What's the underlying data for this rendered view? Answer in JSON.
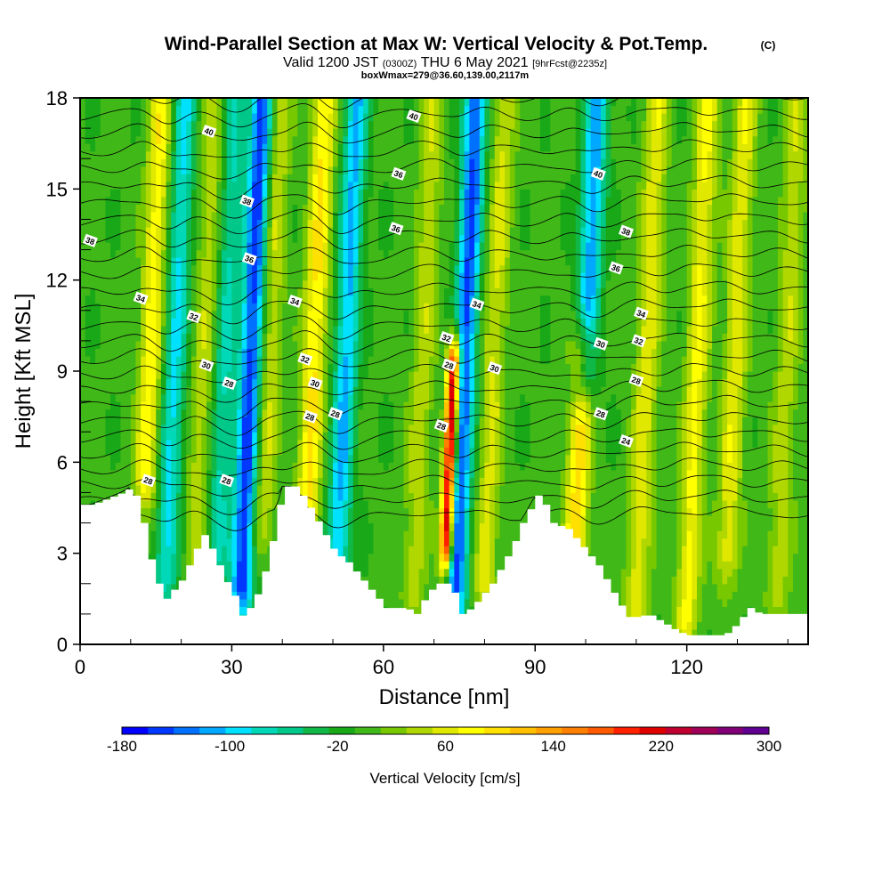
{
  "header": {
    "title": "Wind-Parallel Section at Max W: Vertical Velocity & Pot.Temp.",
    "copyright": "(C)",
    "valid_prefix": "Valid 1200 JST",
    "valid_utc": "(0300Z)",
    "valid_date": "THU 6 May 2021",
    "forecast": "[9hrFcst@2235z]",
    "box_info": "boxWmax=279@36.60,139.00,2117m"
  },
  "chart_data": {
    "type": "heatmap",
    "title": "Wind-Parallel Section at Max W: Vertical Velocity & Pot.Temp.",
    "xlabel": "Distance [nm]",
    "ylabel": "Height [Kft MSL]",
    "xlim": [
      0,
      144
    ],
    "ylim": [
      0,
      18
    ],
    "x_ticks": [
      "0",
      "30",
      "60",
      "90",
      "120"
    ],
    "x_tick_values": [
      0,
      30,
      60,
      90,
      120
    ],
    "y_ticks": [
      "0",
      "3",
      "6",
      "9",
      "12",
      "15",
      "18"
    ],
    "y_tick_values": [
      0,
      3,
      6,
      9,
      12,
      15,
      18
    ],
    "colorbar": {
      "label": "Vertical Velocity [cm/s]",
      "min": -180,
      "max": 300,
      "step": 20,
      "tick_labels": [
        "-180",
        "-100",
        "-20",
        "60",
        "140",
        "220",
        "300"
      ],
      "tick_values": [
        -180,
        -100,
        -20,
        60,
        140,
        220,
        300
      ],
      "colors": [
        "#0000ff",
        "#0038ff",
        "#0070ff",
        "#00a8ff",
        "#00e0ff",
        "#00d8b8",
        "#00c888",
        "#10b848",
        "#18a818",
        "#40b818",
        "#78c800",
        "#b0d800",
        "#e0e800",
        "#ffff00",
        "#ffe000",
        "#ffc000",
        "#ffa000",
        "#ff8000",
        "#ff5a00",
        "#ff2000",
        "#e00000",
        "#c00030",
        "#a00058",
        "#800078",
        "#600090"
      ]
    },
    "vertical_velocity_features": [
      {
        "x": 13,
        "y_range": [
          5.5,
          18
        ],
        "w": 90,
        "kind": "updraft"
      },
      {
        "x": 17,
        "y_range": [
          2.5,
          18
        ],
        "w": -90,
        "kind": "downdraft"
      },
      {
        "x": 23,
        "y_range": [
          3,
          18
        ],
        "w": 50,
        "kind": "updraft"
      },
      {
        "x": 27,
        "y_range": [
          3,
          18
        ],
        "w": -70,
        "kind": "downdraft"
      },
      {
        "x": 32,
        "y_range": [
          2,
          18
        ],
        "w": -160,
        "kind": "downdraft"
      },
      {
        "x": 36,
        "y_range": [
          4,
          18
        ],
        "w": 60,
        "kind": "updraft"
      },
      {
        "x": 45,
        "y_range": [
          4.5,
          18
        ],
        "w": 100,
        "kind": "updraft"
      },
      {
        "x": 51,
        "y_range": [
          3,
          18
        ],
        "w": -110,
        "kind": "downdraft"
      },
      {
        "x": 66,
        "y_range": [
          2,
          18
        ],
        "w": 50,
        "kind": "updraft"
      },
      {
        "x": 74,
        "y_range": [
          1,
          18
        ],
        "w": -150,
        "kind": "downdraft"
      },
      {
        "x": 72.5,
        "y_range": [
          3.5,
          9
        ],
        "w": 279,
        "kind": "updraft"
      },
      {
        "x": 80,
        "y_range": [
          2,
          18
        ],
        "w": 60,
        "kind": "updraft"
      },
      {
        "x": 98,
        "y_range": [
          3.5,
          9.5
        ],
        "w": 110,
        "kind": "updraft"
      },
      {
        "x": 100,
        "y_range": [
          9,
          18
        ],
        "w": -120,
        "kind": "downdraft"
      },
      {
        "x": 110,
        "y_range": [
          1,
          18
        ],
        "w": 70,
        "kind": "updraft"
      },
      {
        "x": 120,
        "y_range": [
          1,
          18
        ],
        "w": 80,
        "kind": "updraft"
      },
      {
        "x": 128,
        "y_range": [
          3,
          18
        ],
        "w": 70,
        "kind": "updraft"
      },
      {
        "x": 138,
        "y_range": [
          2,
          18
        ],
        "w": 50,
        "kind": "updraft"
      }
    ],
    "terrain_kft": [
      [
        0,
        4.6
      ],
      [
        2,
        4.6
      ],
      [
        5,
        4.8
      ],
      [
        8,
        5.0
      ],
      [
        10,
        5.2
      ],
      [
        12,
        4.0
      ],
      [
        13,
        3.2
      ],
      [
        14,
        2.4
      ],
      [
        15,
        2.0
      ],
      [
        16,
        1.4
      ],
      [
        17,
        1.6
      ],
      [
        18,
        1.8
      ],
      [
        20,
        2.2
      ],
      [
        22,
        3.0
      ],
      [
        24,
        3.6
      ],
      [
        26,
        3.0
      ],
      [
        28,
        2.2
      ],
      [
        30,
        1.6
      ],
      [
        31,
        1.0
      ],
      [
        32,
        0.9
      ],
      [
        33,
        1.2
      ],
      [
        35,
        1.8
      ],
      [
        37,
        3.0
      ],
      [
        39,
        4.6
      ],
      [
        40,
        5.2
      ],
      [
        42,
        5.2
      ],
      [
        44,
        4.8
      ],
      [
        46,
        4.2
      ],
      [
        48,
        3.6
      ],
      [
        50,
        3.0
      ],
      [
        52,
        2.8
      ],
      [
        54,
        2.4
      ],
      [
        56,
        2.0
      ],
      [
        58,
        1.6
      ],
      [
        60,
        1.2
      ],
      [
        62,
        1.2
      ],
      [
        64,
        1.2
      ],
      [
        66,
        1.0
      ],
      [
        68,
        1.6
      ],
      [
        70,
        2.0
      ],
      [
        72,
        2.0
      ],
      [
        74,
        1.6
      ],
      [
        75,
        1.0
      ],
      [
        77,
        1.2
      ],
      [
        79,
        1.6
      ],
      [
        81,
        2.0
      ],
      [
        83,
        2.6
      ],
      [
        85,
        3.2
      ],
      [
        87,
        4.0
      ],
      [
        89,
        4.6
      ],
      [
        90,
        4.9
      ],
      [
        91,
        4.8
      ],
      [
        93,
        4.0
      ],
      [
        96,
        3.8
      ],
      [
        98,
        3.4
      ],
      [
        100,
        3.0
      ],
      [
        102,
        2.6
      ],
      [
        104,
        2.0
      ],
      [
        106,
        1.4
      ],
      [
        108,
        0.9
      ],
      [
        110,
        0.9
      ],
      [
        112,
        1.0
      ],
      [
        114,
        0.8
      ],
      [
        116,
        0.6
      ],
      [
        118,
        0.4
      ],
      [
        120,
        0.3
      ],
      [
        122,
        0.3
      ],
      [
        124,
        0.3
      ],
      [
        126,
        0.3
      ],
      [
        128,
        0.4
      ],
      [
        130,
        0.8
      ],
      [
        132,
        1.2
      ],
      [
        134,
        1.0
      ],
      [
        136,
        1.0
      ],
      [
        138,
        1.0
      ],
      [
        140,
        1.0
      ],
      [
        144,
        1.0
      ]
    ],
    "theta_contour_labels": [
      {
        "label": "40",
        "x": 25.5,
        "y": 16.9
      },
      {
        "label": "40",
        "x": 66,
        "y": 17.4
      },
      {
        "label": "40",
        "x": 102.5,
        "y": 15.5
      },
      {
        "label": "38",
        "x": 2,
        "y": 13.3
      },
      {
        "label": "38",
        "x": 33,
        "y": 14.6
      },
      {
        "label": "36",
        "x": 63,
        "y": 15.5
      },
      {
        "label": "36",
        "x": 62.5,
        "y": 13.7
      },
      {
        "label": "36",
        "x": 33.5,
        "y": 12.7
      },
      {
        "label": "38",
        "x": 108,
        "y": 13.6
      },
      {
        "label": "36",
        "x": 106,
        "y": 12.4
      },
      {
        "label": "34",
        "x": 12,
        "y": 11.4
      },
      {
        "label": "34",
        "x": 42.5,
        "y": 11.3
      },
      {
        "label": "34",
        "x": 78.5,
        "y": 11.2
      },
      {
        "label": "34",
        "x": 111,
        "y": 10.9
      },
      {
        "label": "32",
        "x": 22.5,
        "y": 10.8
      },
      {
        "label": "32",
        "x": 72.5,
        "y": 10.1
      },
      {
        "label": "32",
        "x": 110.5,
        "y": 10.0
      },
      {
        "label": "32",
        "x": 44.5,
        "y": 9.4
      },
      {
        "label": "30",
        "x": 25,
        "y": 9.2
      },
      {
        "label": "30",
        "x": 82,
        "y": 9.1
      },
      {
        "label": "30",
        "x": 103,
        "y": 9.9
      },
      {
        "label": "30",
        "x": 46.5,
        "y": 8.6
      },
      {
        "label": "28",
        "x": 29.5,
        "y": 8.6
      },
      {
        "label": "28",
        "x": 73,
        "y": 9.2
      },
      {
        "label": "28",
        "x": 110,
        "y": 8.7
      },
      {
        "label": "28",
        "x": 45.5,
        "y": 7.5
      },
      {
        "label": "28",
        "x": 50.5,
        "y": 7.6
      },
      {
        "label": "28",
        "x": 103,
        "y": 7.6
      },
      {
        "label": "28",
        "x": 71.5,
        "y": 7.2
      },
      {
        "label": "28",
        "x": 13.5,
        "y": 5.4
      },
      {
        "label": "28",
        "x": 29,
        "y": 5.4
      },
      {
        "label": "24",
        "x": 108,
        "y": 6.7
      }
    ]
  }
}
